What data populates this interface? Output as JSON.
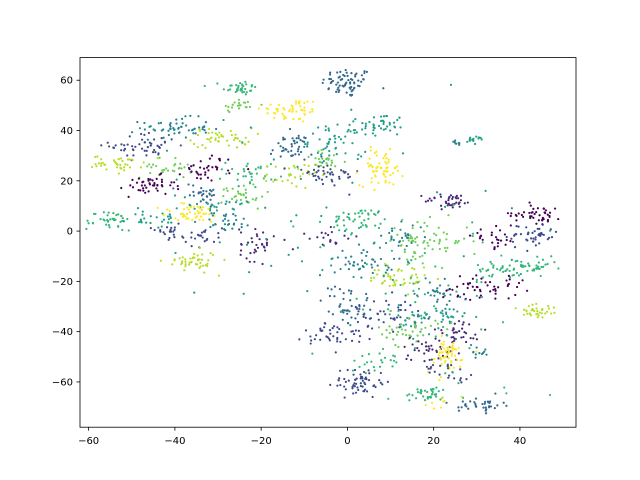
{
  "chart_data": {
    "type": "scatter",
    "title": "",
    "xlabel": "",
    "ylabel": "",
    "xlim": [
      -62,
      53
    ],
    "ylim": [
      -78,
      69
    ],
    "xticks": [
      -60,
      -40,
      -20,
      0,
      20,
      40
    ],
    "yticks": [
      -60,
      -40,
      -20,
      0,
      20,
      40,
      60
    ],
    "xtick_labels": [
      "−60",
      "−40",
      "−20",
      "0",
      "20",
      "40"
    ],
    "ytick_labels": [
      "−60",
      "−40",
      "−20",
      "0",
      "20",
      "40",
      "60"
    ],
    "grid": false,
    "legend": "none",
    "colormap": "viridis",
    "palette": [
      "#440154",
      "#482878",
      "#3e4a89",
      "#31688e",
      "#26828e",
      "#1f9e89",
      "#35b779",
      "#6ece58",
      "#b5de2b",
      "#fde725"
    ],
    "clusters": [
      {
        "cx": 0,
        "cy": 59,
        "sx": 3.0,
        "sy": 3.0,
        "n": 70,
        "c": 3
      },
      {
        "cx": -25,
        "cy": 57,
        "sx": 2.0,
        "sy": 1.5,
        "n": 35,
        "c": 6
      },
      {
        "cx": -25,
        "cy": 50,
        "sx": 2.2,
        "sy": 1.5,
        "n": 20,
        "c": 7
      },
      {
        "cx": -13,
        "cy": 48,
        "sx": 3.5,
        "sy": 2.5,
        "n": 50,
        "c": 9
      },
      {
        "cx": 8,
        "cy": 42,
        "sx": 2.5,
        "sy": 2.5,
        "n": 40,
        "c": 5
      },
      {
        "cx": -40,
        "cy": 41,
        "sx": 4.0,
        "sy": 2.0,
        "n": 55,
        "c": 4
      },
      {
        "cx": -47,
        "cy": 34,
        "sx": 4.0,
        "sy": 2.5,
        "n": 50,
        "c": 2
      },
      {
        "cx": -29,
        "cy": 37,
        "sx": 3.5,
        "sy": 2.0,
        "n": 45,
        "c": 8
      },
      {
        "cx": -13,
        "cy": 33,
        "sx": 2.5,
        "sy": 3.0,
        "n": 45,
        "c": 3
      },
      {
        "cx": -3,
        "cy": 36,
        "sx": 3.0,
        "sy": 3.5,
        "n": 50,
        "c": 5
      },
      {
        "cx": -5,
        "cy": 28,
        "sx": 2.5,
        "sy": 2.0,
        "n": 25,
        "c": 7
      },
      {
        "cx": 30,
        "cy": 36,
        "sx": 1.5,
        "sy": 0.8,
        "n": 15,
        "c": 5
      },
      {
        "cx": 25,
        "cy": 35,
        "sx": 1.0,
        "sy": 0.8,
        "n": 8,
        "c": 4
      },
      {
        "cx": -53,
        "cy": 27,
        "sx": 3.0,
        "sy": 1.5,
        "n": 40,
        "c": 8
      },
      {
        "cx": -42,
        "cy": 25,
        "sx": 3.0,
        "sy": 2.0,
        "n": 30,
        "c": 7
      },
      {
        "cx": -32,
        "cy": 25,
        "sx": 3.0,
        "sy": 2.5,
        "n": 35,
        "c": 0
      },
      {
        "cx": -22,
        "cy": 23,
        "sx": 3.0,
        "sy": 2.5,
        "n": 35,
        "c": 6
      },
      {
        "cx": -13,
        "cy": 22,
        "sx": 3.0,
        "sy": 2.5,
        "n": 30,
        "c": 8
      },
      {
        "cx": -5,
        "cy": 22,
        "sx": 4.0,
        "sy": 2.5,
        "n": 40,
        "c": 2
      },
      {
        "cx": 8,
        "cy": 25,
        "sx": 2.5,
        "sy": 3.5,
        "n": 60,
        "c": 9
      },
      {
        "cx": -46,
        "cy": 18,
        "sx": 3.0,
        "sy": 2.0,
        "n": 45,
        "c": 0
      },
      {
        "cx": -34,
        "cy": 15,
        "sx": 2.5,
        "sy": 2.0,
        "n": 30,
        "c": 3
      },
      {
        "cx": -24,
        "cy": 14,
        "sx": 2.5,
        "sy": 2.5,
        "n": 30,
        "c": 7
      },
      {
        "cx": -31,
        "cy": 11,
        "sx": 3.5,
        "sy": 2.0,
        "n": 25,
        "c": 5
      },
      {
        "cx": 24,
        "cy": 12,
        "sx": 3.0,
        "sy": 1.5,
        "n": 40,
        "c": 1
      },
      {
        "cx": -55,
        "cy": 4,
        "sx": 3.0,
        "sy": 2.0,
        "n": 45,
        "c": 6
      },
      {
        "cx": -45,
        "cy": 5,
        "sx": 3.0,
        "sy": 2.0,
        "n": 25,
        "c": 5
      },
      {
        "cx": -36,
        "cy": 7,
        "sx": 4.0,
        "sy": 2.0,
        "n": 45,
        "c": 9
      },
      {
        "cx": -28,
        "cy": 4,
        "sx": 3.0,
        "sy": 2.0,
        "n": 30,
        "c": 4
      },
      {
        "cx": 3,
        "cy": 4,
        "sx": 3.5,
        "sy": 2.5,
        "n": 45,
        "c": 6
      },
      {
        "cx": 44,
        "cy": 7,
        "sx": 3.0,
        "sy": 2.0,
        "n": 45,
        "c": 0
      },
      {
        "cx": -42,
        "cy": 0,
        "sx": 2.0,
        "sy": 1.5,
        "n": 20,
        "c": 2
      },
      {
        "cx": -34,
        "cy": -2,
        "sx": 2.5,
        "sy": 2.0,
        "n": 25,
        "c": 2
      },
      {
        "cx": -21,
        "cy": -5,
        "sx": 2.0,
        "sy": 3.5,
        "n": 35,
        "c": 1
      },
      {
        "cx": -3,
        "cy": -3,
        "sx": 3.0,
        "sy": 2.0,
        "n": 20,
        "c": 1
      },
      {
        "cx": 18,
        "cy": -4,
        "sx": 5.0,
        "sy": 4.0,
        "n": 70,
        "c": 7
      },
      {
        "cx": 12,
        "cy": -2,
        "sx": 3.0,
        "sy": 2.5,
        "n": 25,
        "c": 4
      },
      {
        "cx": 34,
        "cy": -3,
        "sx": 2.5,
        "sy": 2.0,
        "n": 25,
        "c": 0
      },
      {
        "cx": 43,
        "cy": -2,
        "sx": 3.0,
        "sy": 2.5,
        "n": 45,
        "c": 2
      },
      {
        "cx": -36,
        "cy": -12,
        "sx": 3.0,
        "sy": 2.0,
        "n": 45,
        "c": 8
      },
      {
        "cx": 4,
        "cy": -12,
        "sx": 3.5,
        "sy": 3.0,
        "n": 45,
        "c": 4
      },
      {
        "cx": 42,
        "cy": -15,
        "sx": 3.5,
        "sy": 2.0,
        "n": 45,
        "c": 6
      },
      {
        "cx": 34,
        "cy": -15,
        "sx": 2.5,
        "sy": 2.0,
        "n": 25,
        "c": 6
      },
      {
        "cx": 12,
        "cy": -19,
        "sx": 3.5,
        "sy": 2.5,
        "n": 45,
        "c": 8
      },
      {
        "cx": 31,
        "cy": -22,
        "sx": 5.0,
        "sy": 2.5,
        "n": 50,
        "c": 0
      },
      {
        "cx": 21,
        "cy": -25,
        "sx": 2.5,
        "sy": 2.5,
        "n": 30,
        "c": 4
      },
      {
        "cx": 0,
        "cy": -29,
        "sx": 3.0,
        "sy": 4.0,
        "n": 45,
        "c": 3
      },
      {
        "cx": 10,
        "cy": -33,
        "sx": 4.0,
        "sy": 3.0,
        "n": 45,
        "c": 2
      },
      {
        "cx": 44,
        "cy": -32,
        "sx": 2.5,
        "sy": 2.0,
        "n": 35,
        "c": 8
      },
      {
        "cx": 20,
        "cy": -35,
        "sx": 4.0,
        "sy": 3.0,
        "n": 50,
        "c": 5
      },
      {
        "cx": 14,
        "cy": -40,
        "sx": 3.5,
        "sy": 3.0,
        "n": 40,
        "c": 7
      },
      {
        "cx": -3,
        "cy": -41,
        "sx": 3.5,
        "sy": 2.5,
        "n": 45,
        "c": 2
      },
      {
        "cx": 26,
        "cy": -40,
        "sx": 3.0,
        "sy": 2.5,
        "n": 35,
        "c": 1
      },
      {
        "cx": 19,
        "cy": -47,
        "sx": 3.5,
        "sy": 2.5,
        "n": 35,
        "c": 1
      },
      {
        "cx": 23,
        "cy": -50,
        "sx": 2.5,
        "sy": 3.5,
        "n": 55,
        "c": 9
      },
      {
        "cx": 30,
        "cy": -48,
        "sx": 1.5,
        "sy": 1.5,
        "n": 12,
        "c": 4
      },
      {
        "cx": 8,
        "cy": -52,
        "sx": 2.5,
        "sy": 2.0,
        "n": 20,
        "c": 6
      },
      {
        "cx": 23,
        "cy": -55,
        "sx": 3.0,
        "sy": 2.0,
        "n": 25,
        "c": 2
      },
      {
        "cx": 3,
        "cy": -60,
        "sx": 3.0,
        "sy": 3.0,
        "n": 60,
        "c": 2
      },
      {
        "cx": 19,
        "cy": -65,
        "sx": 3.0,
        "sy": 1.5,
        "n": 40,
        "c": 6
      },
      {
        "cx": 31,
        "cy": -69,
        "sx": 2.5,
        "sy": 1.5,
        "n": 35,
        "c": 3
      },
      {
        "cx": 21,
        "cy": -68,
        "sx": 1.5,
        "sy": 1.0,
        "n": 8,
        "c": 9
      },
      {
        "cx": -10,
        "cy": 3,
        "sx": 25.0,
        "sy": 25.0,
        "n": 60,
        "c": 5
      },
      {
        "cx": 20,
        "cy": -30,
        "sx": 15.0,
        "sy": 20.0,
        "n": 60,
        "c": 6
      }
    ]
  }
}
